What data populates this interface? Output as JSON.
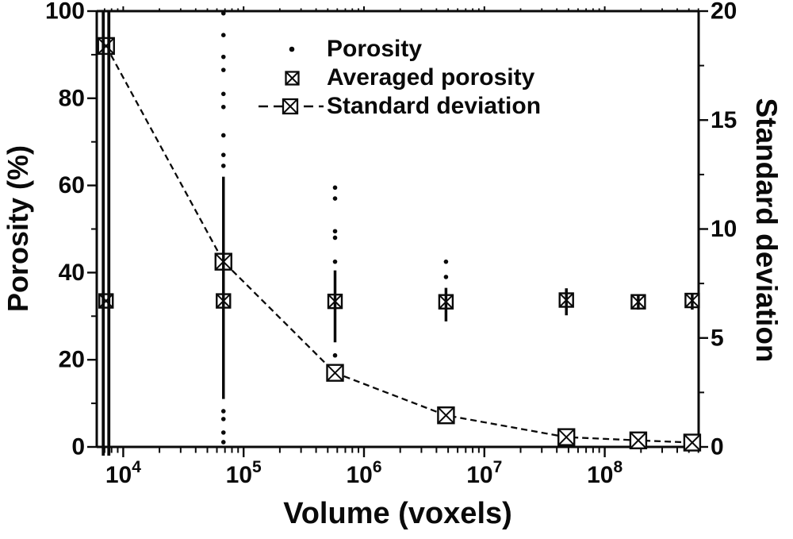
{
  "figure": {
    "background": "#ffffff",
    "ink_color": "#0a0a0a"
  },
  "chart_data": {
    "type": "scatter",
    "title": "",
    "xlabel": "Volume (voxels)",
    "ylabel_left": "Porosity (%)",
    "ylabel_right": "Standard deviation",
    "x_axis": {
      "scale": "log",
      "range_log10": [
        3.78,
        8.78
      ],
      "major_ticks": [
        10000,
        100000,
        1000000,
        10000000,
        100000000
      ],
      "tick_label_base": "10",
      "tick_label_exponents": [
        "4",
        "5",
        "6",
        "7",
        "8"
      ]
    },
    "y_left_axis": {
      "range": [
        0,
        100
      ],
      "major_ticks": [
        0,
        20,
        40,
        60,
        80,
        100
      ],
      "minor_ticks": [
        10,
        30,
        50,
        70,
        90
      ]
    },
    "y_right_axis": {
      "range": [
        0,
        20
      ],
      "major_ticks": [
        0,
        5,
        10,
        15,
        20
      ],
      "minor_ticks": [
        2.5,
        7.5,
        12.5,
        17.5
      ]
    },
    "grid": "off",
    "series": {
      "porosity": {
        "label": "Porosity",
        "columns": [
          {
            "volume": 7200,
            "spread_min": 0,
            "spread_max": 100,
            "double_line": true,
            "overshoot": true,
            "outlier_dots": []
          },
          {
            "volume": 68000,
            "spread_min": 11,
            "spread_max": 62,
            "double_line": false,
            "overshoot": false,
            "outlier_dots": [
              99.5,
              94.5,
              89.5,
              86.5,
              81,
              78,
              71.5,
              67,
              64.5,
              8.2,
              6.4,
              3.3,
              1.1
            ]
          },
          {
            "volume": 575000,
            "spread_min": 24,
            "spread_max": 40.5,
            "double_line": false,
            "overshoot": false,
            "outlier_dots": [
              59.5,
              57,
              49.5,
              48,
              42.5,
              21
            ]
          },
          {
            "volume": 4800000,
            "spread_min": 28.8,
            "spread_max": 36.5,
            "double_line": false,
            "overshoot": false,
            "outlier_dots": [
              42.5,
              39
            ]
          },
          {
            "volume": 48000000,
            "spread_min": 30.2,
            "spread_max": 36.4,
            "double_line": false,
            "overshoot": false,
            "outlier_dots": []
          },
          {
            "volume": 190000000,
            "spread_min": 31.5,
            "spread_max": 35,
            "double_line": false,
            "overshoot": false,
            "outlier_dots": []
          },
          {
            "volume": 533000000,
            "spread_min": 31.5,
            "spread_max": 35,
            "double_line": false,
            "overshoot": false,
            "outlier_dots": []
          }
        ]
      },
      "averaged_porosity": {
        "label": "Averaged porosity",
        "volumes": [
          7200,
          68000,
          575000,
          4800000,
          48000000,
          190000000,
          533000000
        ],
        "values": [
          33.5,
          33.5,
          33.4,
          33.3,
          33.7,
          33.3,
          33.6
        ]
      },
      "standard_deviation": {
        "label": "Standard deviation",
        "volumes": [
          7200,
          68000,
          575000,
          4800000,
          48000000,
          190000000,
          533000000
        ],
        "values": [
          18.4,
          8.5,
          3.4,
          1.45,
          0.45,
          0.3,
          0.2
        ]
      }
    },
    "legend": {
      "position": "top-center",
      "items": [
        {
          "marker": "dot",
          "label": "Porosity"
        },
        {
          "marker": "crossed-square",
          "label": "Averaged porosity"
        },
        {
          "marker": "dashed-line-crossed-square",
          "label": "Standard deviation"
        }
      ]
    }
  }
}
